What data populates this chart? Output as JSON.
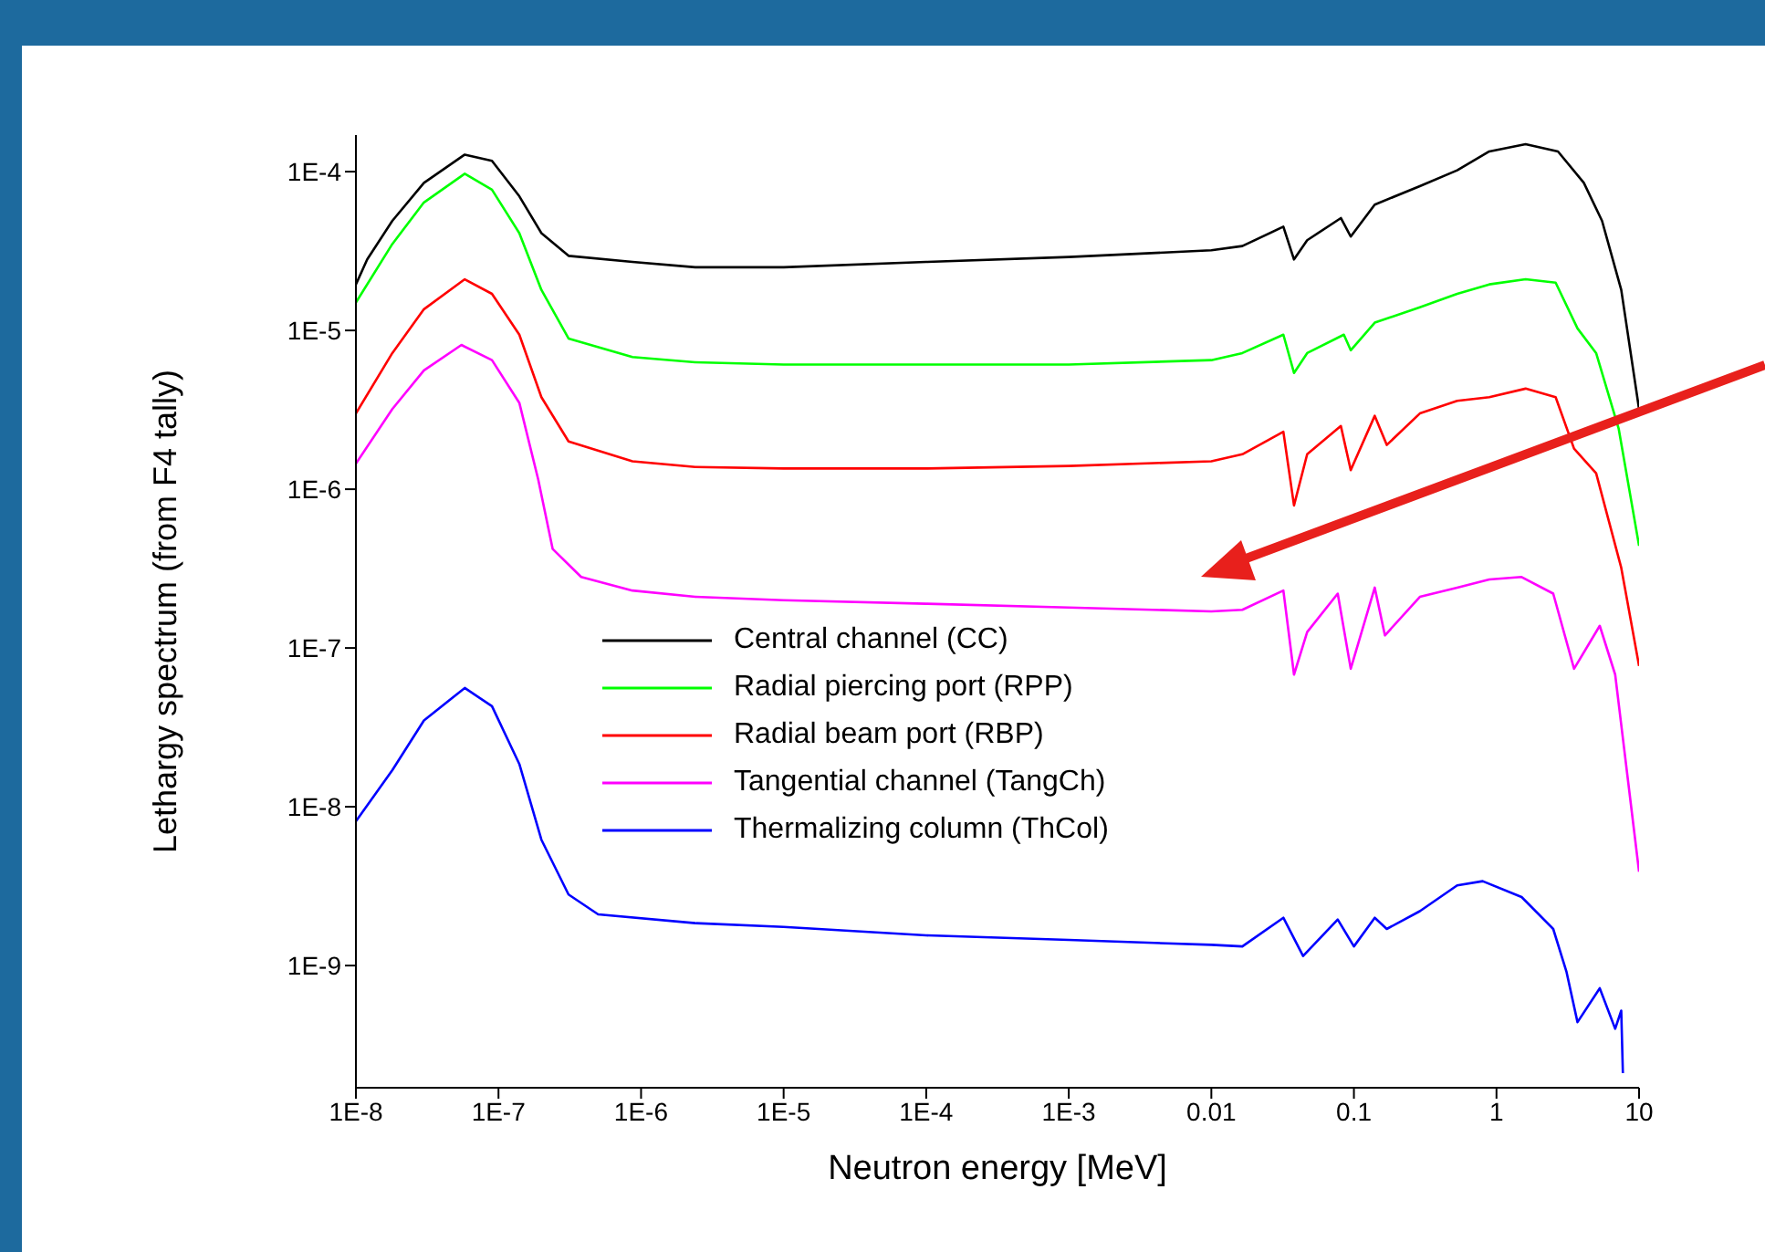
{
  "chart_data": {
    "type": "line",
    "xlabel": "Neutron energy [MeV]",
    "ylabel": "Lethargy spectrum (from F4 tally)",
    "log": "xy",
    "legend": "center",
    "xlim": [
      1e-08,
      10
    ],
    "ylim": [
      1.7e-10,
      0.00017
    ],
    "xticks": [
      {
        "value": 1e-08,
        "label": "1E-8"
      },
      {
        "value": 1e-07,
        "label": "1E-7"
      },
      {
        "value": 1e-06,
        "label": "1E-6"
      },
      {
        "value": 1e-05,
        "label": "1E-5"
      },
      {
        "value": 0.0001,
        "label": "1E-4"
      },
      {
        "value": 0.001,
        "label": "1E-3"
      },
      0.01,
      0.1,
      1,
      10
    ],
    "yticks": [
      {
        "value": 1e-09,
        "label": "1E-9"
      },
      {
        "value": 1e-08,
        "label": "1E-8"
      },
      {
        "value": 1e-07,
        "label": "1E-7"
      },
      {
        "value": 1e-06,
        "label": "1E-6"
      },
      {
        "value": 1e-05,
        "label": "1E-5"
      },
      {
        "value": 0.0001,
        "label": "1E-4"
      }
    ],
    "series": [
      {
        "name": "Central channel (CC)",
        "color": "#000000",
        "x": [
          1e-08,
          1.2e-08,
          1.8e-08,
          3e-08,
          5.8e-08,
          9e-08,
          1.4e-07,
          2e-07,
          3.1e-07,
          8.7e-07,
          2.4e-06,
          1e-05,
          0.0001,
          0.001,
          0.01,
          0.0165,
          0.032,
          0.038,
          0.047,
          0.081,
          0.095,
          0.14,
          0.29,
          0.53,
          0.89,
          1.6,
          2.7,
          4.1,
          5.5,
          7.5,
          10
        ],
        "values": [
          1.95e-05,
          2.8e-05,
          4.9e-05,
          8.5e-05,
          0.000128,
          0.000117,
          7e-05,
          4.1e-05,
          2.95e-05,
          2.7e-05,
          2.5e-05,
          2.5e-05,
          2.7e-05,
          2.9e-05,
          3.2e-05,
          3.4e-05,
          4.5e-05,
          2.8e-05,
          3.7e-05,
          5.1e-05,
          3.9e-05,
          6.2e-05,
          8.1e-05,
          0.000102,
          0.000134,
          0.000149,
          0.000134,
          8.5e-05,
          4.9e-05,
          1.8e-05,
          3.2e-06
        ]
      },
      {
        "name": "Radial piercing port (RPP)",
        "color": "#00ff00",
        "x": [
          1e-08,
          1.8e-08,
          3e-08,
          5.8e-08,
          9e-08,
          1.4e-07,
          2e-07,
          3.1e-07,
          8.7e-07,
          2.4e-06,
          1e-05,
          0.0001,
          0.001,
          0.01,
          0.0165,
          0.032,
          0.038,
          0.047,
          0.085,
          0.095,
          0.14,
          0.29,
          0.53,
          0.89,
          1.6,
          2.6,
          3.7,
          5,
          7.2,
          10
        ],
        "values": [
          1.5e-05,
          3.5e-05,
          6.4e-05,
          9.7e-05,
          7.7e-05,
          4.1e-05,
          1.8e-05,
          8.9e-06,
          6.8e-06,
          6.3e-06,
          6.1e-06,
          6.1e-06,
          6.1e-06,
          6.5e-06,
          7.2e-06,
          9.4e-06,
          5.4e-06,
          7.2e-06,
          9.4e-06,
          7.5e-06,
          1.12e-05,
          1.4e-05,
          1.7e-05,
          1.95e-05,
          2.1e-05,
          2e-05,
          1.03e-05,
          7.2e-06,
          2.4e-06,
          4.4e-07
        ]
      },
      {
        "name": "Radial beam port (RBP)",
        "color": "#ff0000",
        "x": [
          1e-08,
          1.8e-08,
          3e-08,
          5.8e-08,
          9e-08,
          1.4e-07,
          2e-07,
          3.1e-07,
          8.7e-07,
          2.4e-06,
          1e-05,
          0.0001,
          0.001,
          0.01,
          0.0165,
          0.032,
          0.038,
          0.047,
          0.081,
          0.095,
          0.14,
          0.17,
          0.29,
          0.53,
          0.89,
          1.6,
          2.6,
          3.5,
          5,
          7.5,
          10
        ],
        "values": [
          3e-06,
          7.2e-06,
          1.36e-05,
          2.1e-05,
          1.7e-05,
          9.4e-06,
          3.8e-06,
          2e-06,
          1.5e-06,
          1.38e-06,
          1.35e-06,
          1.35e-06,
          1.4e-06,
          1.5e-06,
          1.66e-06,
          2.3e-06,
          7.9e-07,
          1.66e-06,
          2.5e-06,
          1.32e-06,
          2.9e-06,
          1.9e-06,
          3e-06,
          3.6e-06,
          3.8e-06,
          4.3e-06,
          3.8e-06,
          1.8e-06,
          1.26e-06,
          3.2e-07,
          7.7e-08
        ]
      },
      {
        "name": "Tangential channel (TangCh)",
        "color": "#ff00ff",
        "x": [
          1e-08,
          1.8e-08,
          3e-08,
          5.5e-08,
          9e-08,
          1.4e-07,
          1.9e-07,
          2.4e-07,
          3.8e-07,
          8.7e-07,
          2.4e-06,
          1e-05,
          0.0001,
          0.001,
          0.01,
          0.0165,
          0.032,
          0.038,
          0.047,
          0.077,
          0.095,
          0.14,
          0.165,
          0.29,
          0.53,
          0.89,
          1.5,
          2.5,
          3.5,
          5.3,
          6.8,
          8.3,
          10
        ],
        "values": [
          1.45e-06,
          3.2e-06,
          5.6e-06,
          8.1e-06,
          6.5e-06,
          3.5e-06,
          1.15e-06,
          4.2e-07,
          2.8e-07,
          2.3e-07,
          2.1e-07,
          2e-07,
          1.9e-07,
          1.8e-07,
          1.7e-07,
          1.74e-07,
          2.3e-07,
          6.8e-08,
          1.26e-07,
          2.2e-07,
          7.4e-08,
          2.4e-07,
          1.2e-07,
          2.1e-07,
          2.4e-07,
          2.7e-07,
          2.8e-07,
          2.2e-07,
          7.4e-08,
          1.38e-07,
          6.8e-08,
          1.55e-08,
          3.9e-09
        ]
      },
      {
        "name": "Thermalizing column (ThCol)",
        "color": "#0000ff",
        "x": [
          1e-08,
          1.8e-08,
          3e-08,
          5.8e-08,
          9e-08,
          1.4e-07,
          2e-07,
          3.1e-07,
          5e-07,
          2.4e-06,
          1e-05,
          0.0001,
          0.001,
          0.01,
          0.0165,
          0.032,
          0.044,
          0.077,
          0.1,
          0.14,
          0.17,
          0.29,
          0.53,
          0.8,
          1.5,
          2.5,
          3.1,
          3.7,
          5.3,
          6.8,
          7.5,
          7.7
        ],
        "values": [
          8.1e-09,
          1.7e-08,
          3.5e-08,
          5.6e-08,
          4.3e-08,
          1.86e-08,
          6.2e-09,
          2.8e-09,
          2.1e-09,
          1.85e-09,
          1.75e-09,
          1.55e-09,
          1.45e-09,
          1.35e-09,
          1.32e-09,
          2e-09,
          1.15e-09,
          1.95e-09,
          1.32e-09,
          2e-09,
          1.7e-09,
          2.2e-09,
          3.2e-09,
          3.4e-09,
          2.7e-09,
          1.7e-09,
          9.1e-10,
          4.4e-10,
          7.2e-10,
          4e-10,
          5.2e-10,
          2.1e-10
        ]
      }
    ]
  }
}
